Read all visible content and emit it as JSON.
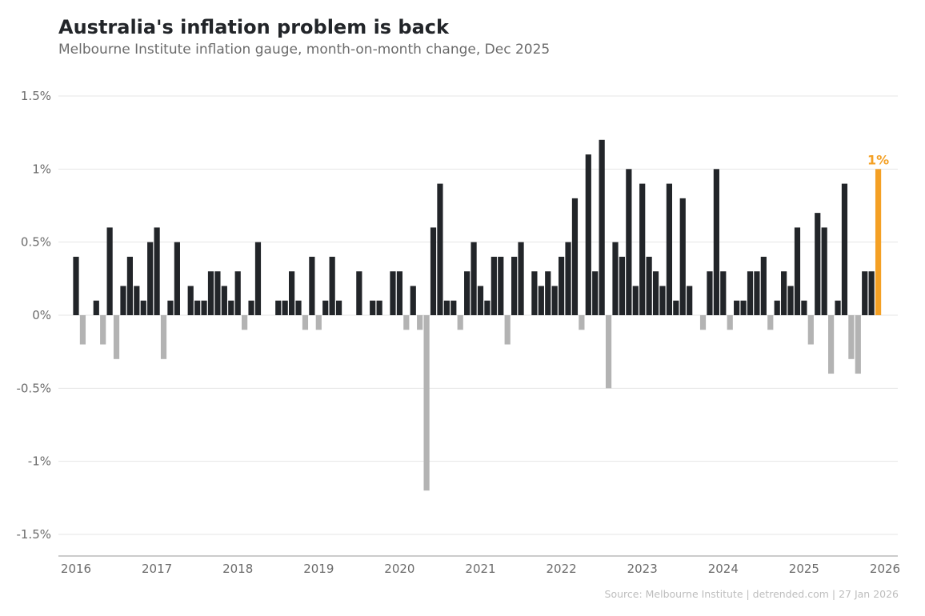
{
  "header": {
    "title": "Australia's inflation problem is back",
    "subtitle": "Melbourne Institute inflation gauge, month-on-month change, Dec 2025"
  },
  "footer": {
    "source": "Source: Melbourne Institute | detrended.com | 27 Jan 2026"
  },
  "chart_data": {
    "type": "bar",
    "title": "Australia's inflation problem is back",
    "subtitle": "Melbourne Institute inflation gauge, month-on-month change, Dec 2025",
    "xlabel": "",
    "ylabel": "",
    "x_start": "2016-01",
    "x_end": "2025-12",
    "frequency": "monthly",
    "ylim": [
      -1.5,
      1.5
    ],
    "yticks": [
      1.5,
      1,
      0.5,
      0,
      -0.5,
      -1,
      -1.5
    ],
    "ytick_labels": [
      "1.5%",
      "1%",
      "0.5%",
      "0%",
      "-0.5%",
      "-1%",
      "-1.5%"
    ],
    "xtick_labels": [
      "2016",
      "2017",
      "2018",
      "2019",
      "2020",
      "2021",
      "2022",
      "2023",
      "2024",
      "2025",
      "2026"
    ],
    "grid": "horizontal",
    "values": [
      0.4,
      -0.2,
      0,
      0.1,
      -0.2,
      0.6,
      -0.3,
      0.2,
      0.4,
      0.2,
      0.1,
      0.5,
      0.6,
      -0.3,
      0.1,
      0.5,
      0,
      0.2,
      0.1,
      0.1,
      0.3,
      0.3,
      0.2,
      0.1,
      0.3,
      -0.1,
      0.1,
      0.5,
      0,
      0,
      0.1,
      0.1,
      0.3,
      0.1,
      -0.1,
      0.4,
      -0.1,
      0.1,
      0.4,
      0.1,
      0,
      0,
      0.3,
      0,
      0.1,
      0.1,
      0,
      0.3,
      0.3,
      -0.1,
      0.2,
      -0.1,
      -1.2,
      0.6,
      0.9,
      0.1,
      0.1,
      -0.1,
      0.3,
      0.5,
      0.2,
      0.1,
      0.4,
      0.4,
      -0.2,
      0.4,
      0.5,
      0,
      0.3,
      0.2,
      0.3,
      0.2,
      0.4,
      0.5,
      0.8,
      -0.1,
      1.1,
      0.3,
      1.2,
      -0.5,
      0.5,
      0.4,
      1.0,
      0.2,
      0.9,
      0.4,
      0.3,
      0.2,
      0.9,
      0.1,
      0.8,
      0.2,
      0,
      -0.1,
      0.3,
      1.0,
      0.3,
      -0.1,
      0.1,
      0.1,
      0.3,
      0.3,
      0.4,
      -0.1,
      0.1,
      0.3,
      0.2,
      0.6,
      0.1,
      -0.2,
      0.7,
      0.6,
      -0.4,
      0.1,
      0.9,
      -0.3,
      -0.4,
      0.3,
      0.3,
      1.0
    ],
    "highlight": {
      "label": "1%",
      "month": "2025-12",
      "value": 1.0
    },
    "colors": {
      "positive": "#222529",
      "negative": "#b3b3b3",
      "highlight": "#f4a024",
      "grid": "#e5e5e5",
      "axis": "#999999"
    }
  }
}
